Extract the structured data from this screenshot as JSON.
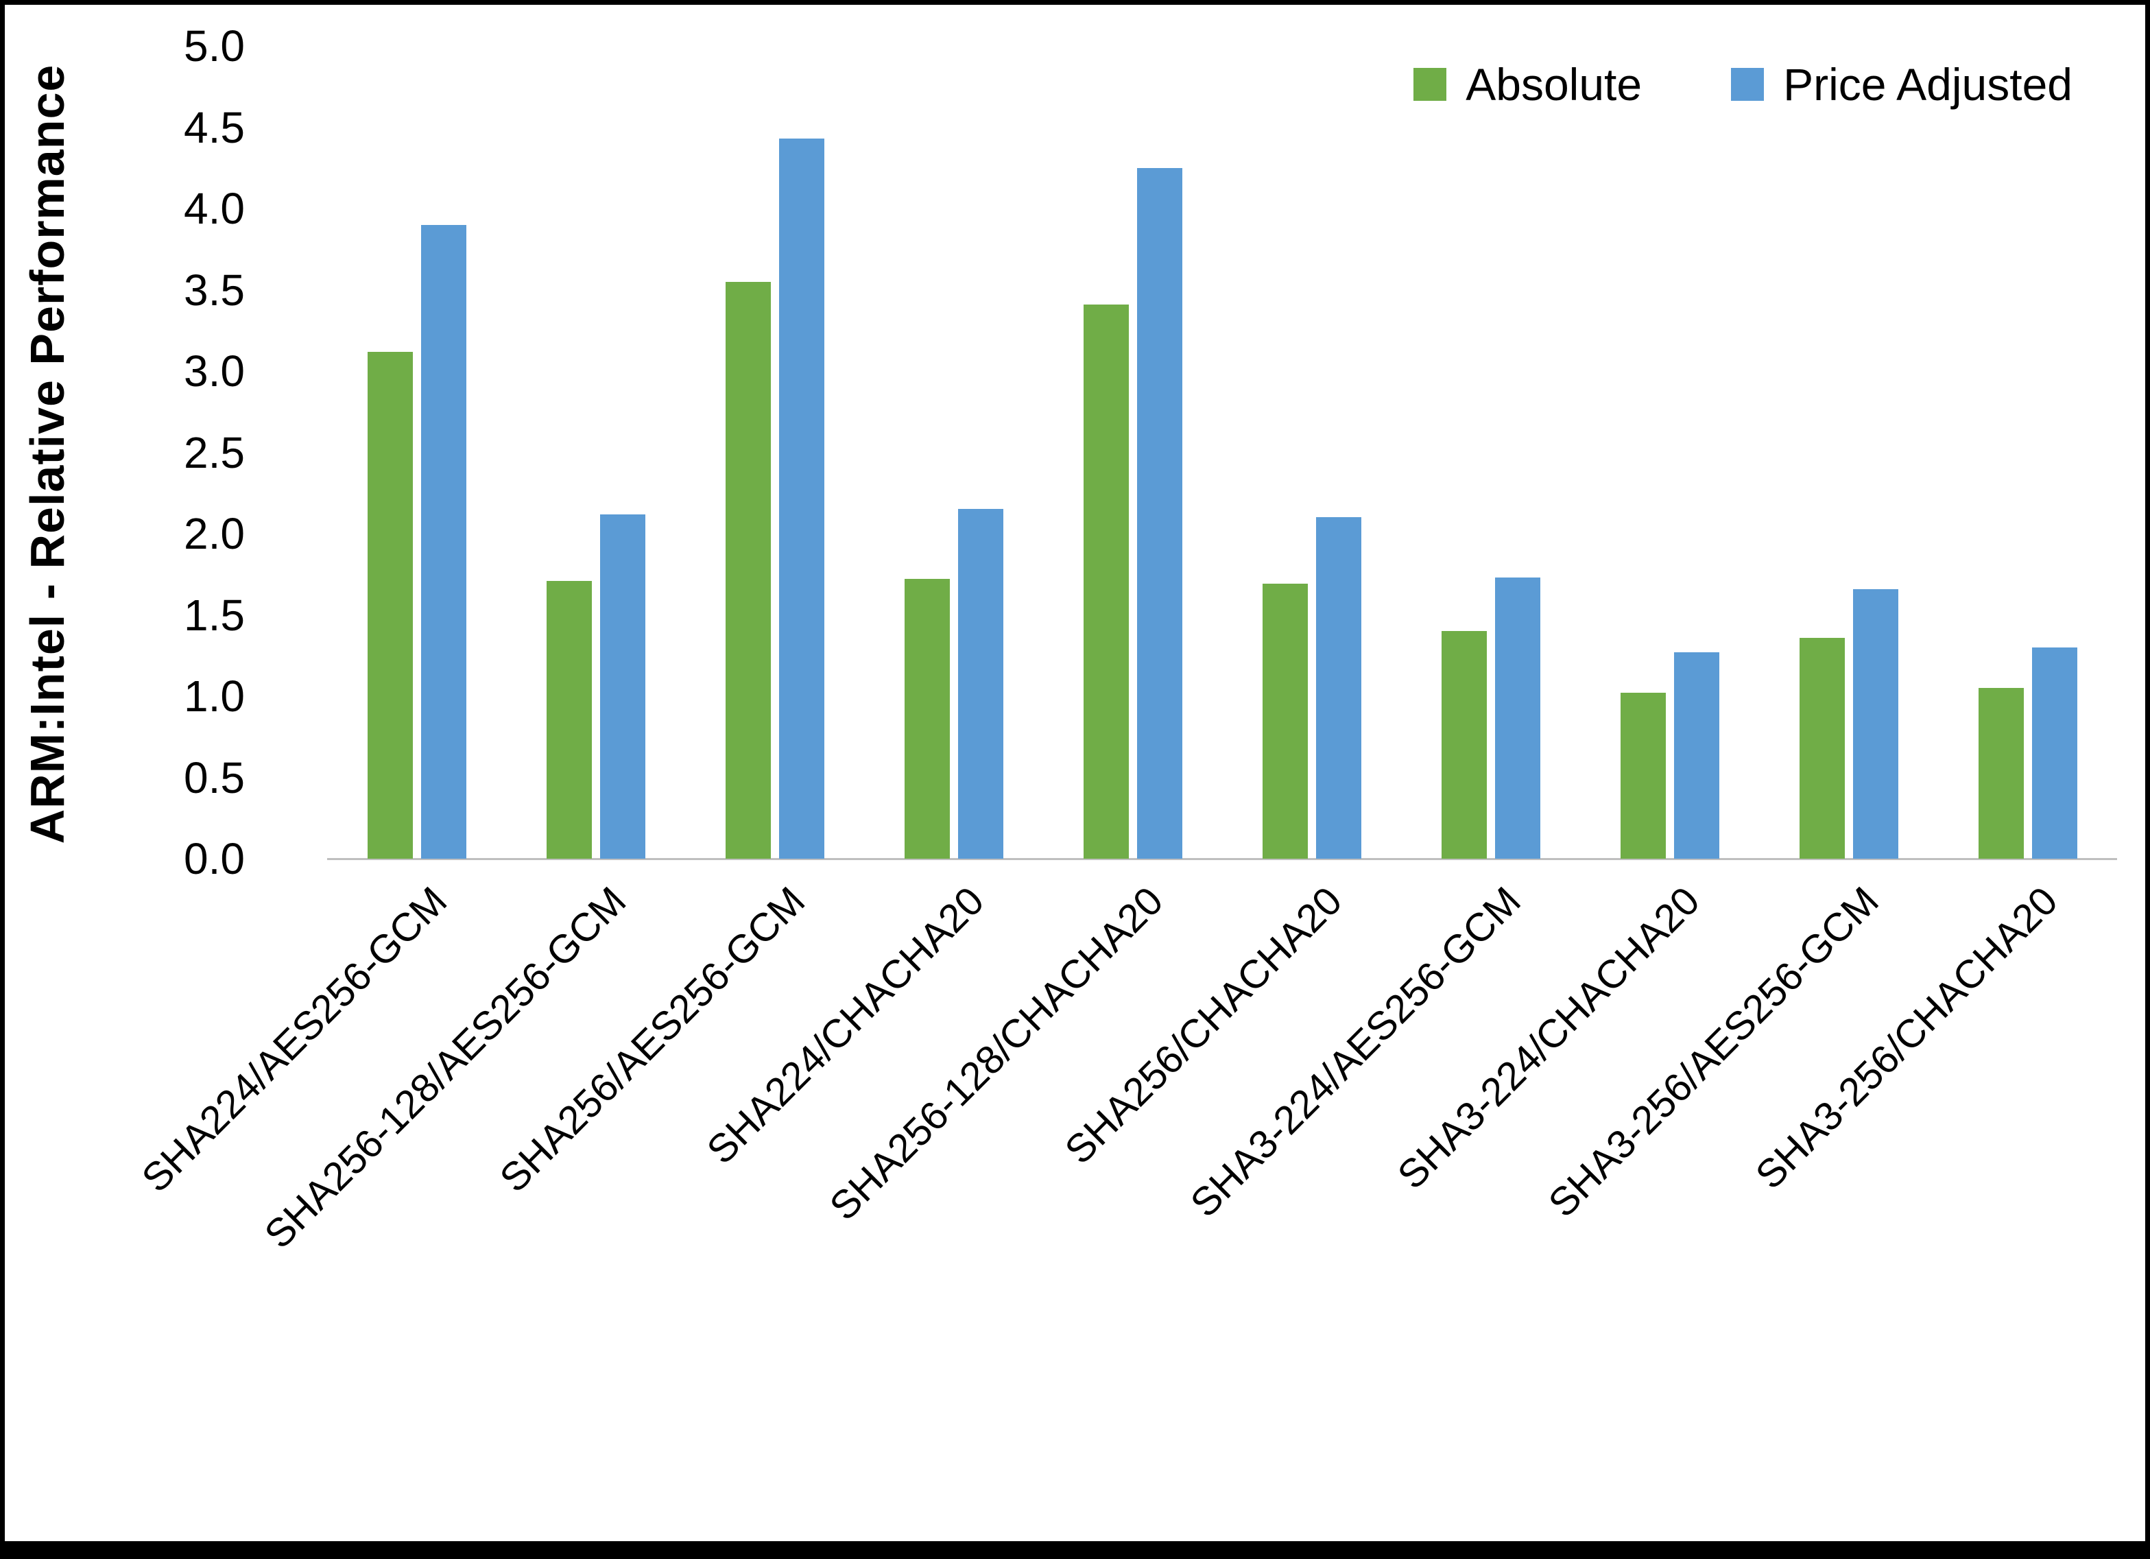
{
  "chart_data": {
    "type": "bar",
    "title": "",
    "xlabel": "",
    "ylabel": "ARM:Intel - Relative Performance",
    "ylim": [
      0,
      5
    ],
    "ytick_labels": [
      "0.0",
      "0.5",
      "1.0",
      "1.5",
      "2.0",
      "2.5",
      "3.0",
      "3.5",
      "4.0",
      "4.5",
      "5.0"
    ],
    "grid": "off",
    "legend_position": "top-right",
    "categories": [
      "SHA224/AES256-GCM",
      "SHA256-128/AES256-GCM",
      "SHA256/AES256-GCM",
      "SHA224/CHACHA20",
      "SHA256-128/CHACHA20",
      "SHA256/CHACHA20",
      "SHA3-224/AES256-GCM",
      "SHA3-224/CHACHA20",
      "SHA3-256/AES256-GCM",
      "SHA3-256/CHACHA20"
    ],
    "series": [
      {
        "name": "Absolute",
        "color": "#70AD47",
        "values": [
          3.12,
          1.71,
          3.55,
          1.72,
          3.41,
          1.69,
          1.4,
          1.02,
          1.36,
          1.05
        ]
      },
      {
        "name": "Price Adjusted",
        "color": "#5B9BD5",
        "values": [
          3.9,
          2.12,
          4.43,
          2.15,
          4.25,
          2.1,
          1.73,
          1.27,
          1.66,
          1.3
        ]
      }
    ]
  }
}
